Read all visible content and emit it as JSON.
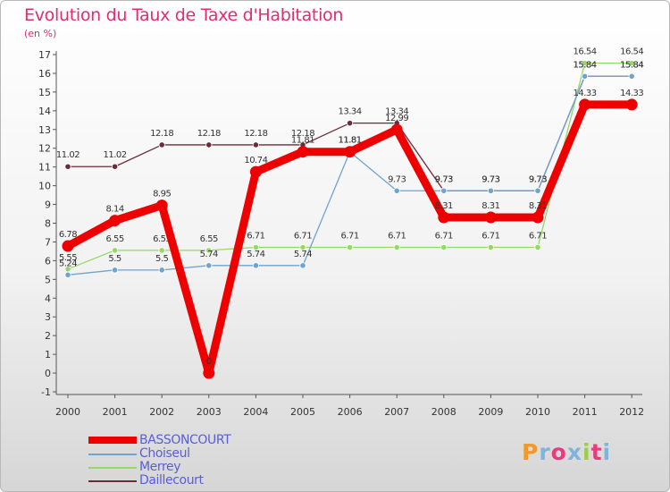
{
  "page": {
    "title": "Evolution du Taux de Taxe d'Habitation",
    "subtitle": "(en %)"
  },
  "logo": {
    "text": "Proxiti",
    "colors": [
      "#f19a2b",
      "#7fb4dd",
      "#e83a7d",
      "#7fb4dd",
      "#9fcd47",
      "#e83a7d",
      "#7fb4dd"
    ]
  },
  "chart_data": {
    "type": "line",
    "title": "Evolution du Taux de Taxe d'Habitation",
    "subtitle": "(en %)",
    "xlabel": "",
    "ylabel": "",
    "x": [
      "2000",
      "2001",
      "2002",
      "2003",
      "2004",
      "2005",
      "2006",
      "2007",
      "2008",
      "2009",
      "2010",
      "2011",
      "2012"
    ],
    "ylim": [
      -1,
      17
    ],
    "yticks": [
      -1,
      0,
      1,
      2,
      3,
      4,
      5,
      6,
      7,
      8,
      9,
      10,
      11,
      12,
      13,
      14,
      15,
      16,
      17
    ],
    "grid": false,
    "legend_position": "bottom-left",
    "series": [
      {
        "name": "Daillecourt",
        "color": "#6b2c3a",
        "values": [
          11.02,
          11.02,
          12.18,
          12.18,
          12.18,
          12.18,
          13.34,
          13.34,
          9.73,
          9.73,
          9.73,
          15.84,
          15.84
        ],
        "labels": [
          "11.02",
          "11.02",
          "12.18",
          "12.18",
          "12.18",
          "12.18",
          "13.34",
          "13.34",
          "9.73",
          "9.73",
          "9.73",
          "15.84",
          "15.84"
        ]
      },
      {
        "name": "Merrey",
        "color": "#94d86a",
        "values": [
          5.55,
          6.55,
          6.55,
          6.55,
          6.71,
          6.71,
          6.71,
          6.71,
          6.71,
          6.71,
          6.71,
          16.54,
          16.54
        ],
        "labels": [
          "5.55",
          "6.55",
          "6.55",
          "6.55",
          "6.71",
          "6.71",
          "6.71",
          "6.71",
          "6.71",
          "6.71",
          "6.71",
          "16.54",
          "16.54"
        ]
      },
      {
        "name": "Choiseul",
        "color": "#6fa3d0",
        "values": [
          5.24,
          5.5,
          5.5,
          5.74,
          5.74,
          5.74,
          11.81,
          9.73,
          9.73,
          9.73,
          9.73,
          15.84,
          15.84
        ],
        "labels": [
          "5.24",
          "5.5",
          "5.5",
          "5.74",
          "5.74",
          "5.74",
          "11.81",
          "9.73",
          "9.73",
          "9.73",
          "9.73",
          "15.84",
          "15.84"
        ]
      },
      {
        "name": "BASSONCOURT",
        "color": "#ee0000",
        "values": [
          6.78,
          8.14,
          8.95,
          0,
          10.74,
          11.81,
          11.81,
          12.99,
          8.31,
          8.31,
          8.31,
          14.33,
          14.33
        ],
        "labels": [
          "6.78",
          "8.14",
          "8.95",
          "0",
          "10.74",
          "11.81",
          "11.81",
          "12.99",
          "8.31",
          "8.31",
          "8.31",
          "14.33",
          "14.33"
        ]
      }
    ],
    "legend": [
      {
        "name": "BASSONCOURT",
        "color": "#ee0000",
        "thick": true
      },
      {
        "name": "Choiseul",
        "color": "#6fa3d0",
        "thick": false
      },
      {
        "name": "Merrey",
        "color": "#94d86a",
        "thick": false
      },
      {
        "name": "Daillecourt",
        "color": "#6b2c3a",
        "thick": false
      }
    ]
  }
}
